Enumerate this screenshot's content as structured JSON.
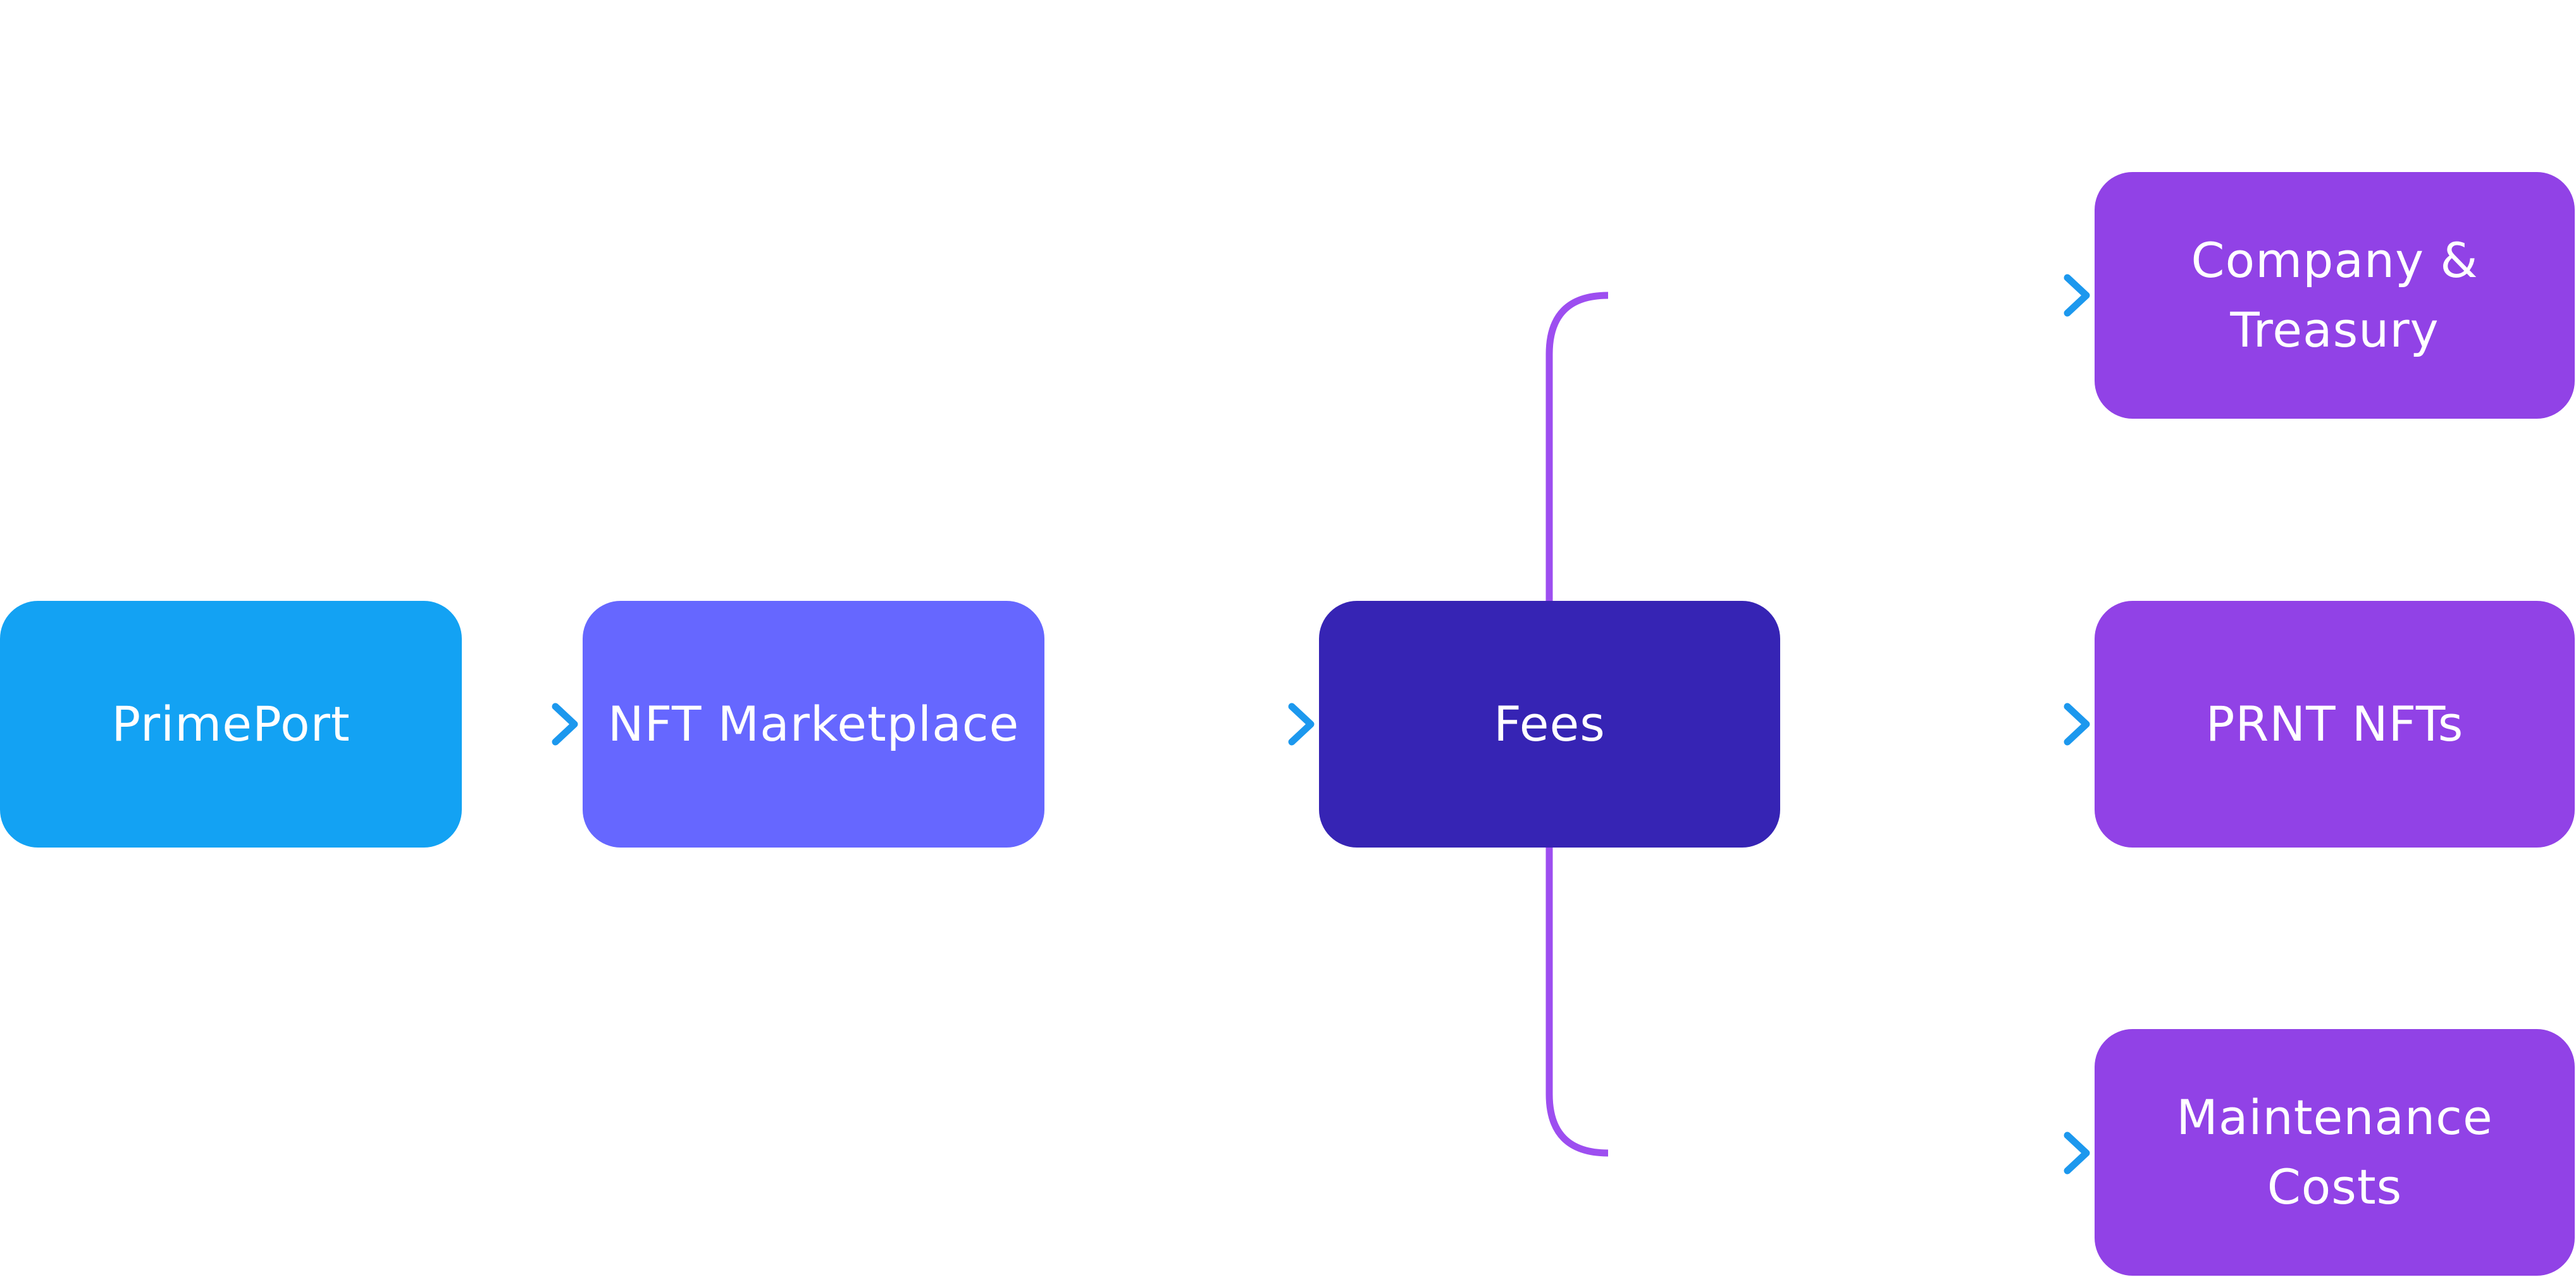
{
  "colors": {
    "primeport": "#13A2F3",
    "nft_marketplace": "#6667FF",
    "fees": "#3624B4",
    "destination": "#9142E6",
    "arrow_start": "#9D4EF0",
    "arrow_mid": "#4A10CF",
    "arrow_end": "#1C98EE",
    "text": "#FFFFFF"
  },
  "nodes": {
    "primeport": {
      "lines": [
        "PrimePort"
      ]
    },
    "nft_marketplace": {
      "lines": [
        "NFT Marketplace"
      ]
    },
    "fees": {
      "lines": [
        "Fees"
      ]
    },
    "company_treasury": {
      "lines": [
        "Company &",
        "Treasury"
      ]
    },
    "prnt_nfts": {
      "lines": [
        "PRNT NFTs"
      ]
    },
    "maintenance_costs": {
      "lines": [
        "Maintenance",
        "Costs"
      ]
    }
  },
  "edges": [
    {
      "from": "primeport",
      "to": "nft_marketplace"
    },
    {
      "from": "nft_marketplace",
      "to": "fees"
    },
    {
      "from": "fees",
      "to": "company_treasury"
    },
    {
      "from": "fees",
      "to": "prnt_nfts"
    },
    {
      "from": "fees",
      "to": "maintenance_costs"
    }
  ]
}
